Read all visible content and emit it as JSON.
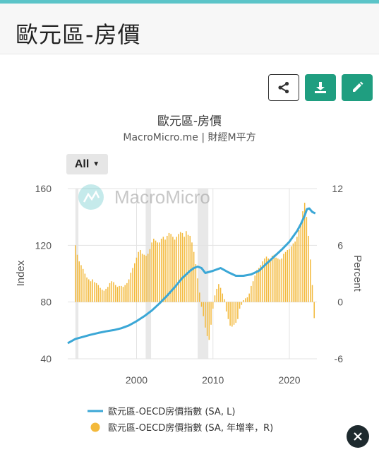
{
  "header": {
    "title": "歐元區-房價"
  },
  "toolbar": {
    "share_icon": "share-icon",
    "download_icon": "download-icon",
    "edit_icon": "pencil-icon"
  },
  "colors": {
    "accent": "#1f9e80",
    "line": "#3ba7d6",
    "bars": "#f3b93b",
    "recession": "#e8e8e8",
    "topbar": "#5bc4c8"
  },
  "range_selector": {
    "label": "All"
  },
  "watermark": "MacroMicro",
  "chart_data": {
    "type": "line+bar",
    "title": "歐元區-房價",
    "subtitle": "MacroMicro.me | 財經M平方",
    "xlim": [
      1991,
      2023.6
    ],
    "x_ticks": [
      2000,
      2010,
      2020
    ],
    "y_left": {
      "label": "Index",
      "ticks": [
        40,
        80,
        120,
        160
      ],
      "lim": [
        40,
        160
      ]
    },
    "y_right": {
      "label": "Percent",
      "ticks": [
        -6,
        0,
        6,
        12
      ],
      "lim": [
        -6,
        12
      ]
    },
    "recession_bands": [
      [
        1992.0,
        1992.4
      ],
      [
        2001.2,
        2001.9
      ],
      [
        2008.0,
        2009.4
      ]
    ],
    "series": [
      {
        "name": "歐元區-OECD房價指數 (SA, L)",
        "kind": "line",
        "axis": "left",
        "x": [
          1991.0,
          1992,
          1993,
          1994,
          1995,
          1996,
          1997,
          1998,
          1999,
          2000,
          2001,
          2002,
          2003,
          2004,
          2005,
          2006,
          2007,
          2007.5,
          2008,
          2008.5,
          2009,
          2010,
          2011,
          2012,
          2013,
          2014,
          2015,
          2016,
          2017,
          2018,
          2019,
          2020,
          2021,
          2021.5,
          2022,
          2022.3,
          2022.6,
          2023,
          2023.4
        ],
        "values": [
          51,
          54,
          55.5,
          57,
          58.2,
          59.3,
          60.2,
          61.5,
          63.5,
          66.5,
          70,
          74,
          79,
          84.5,
          90.5,
          97,
          102,
          104,
          105,
          104,
          100.5,
          102,
          104,
          101,
          98.5,
          98.5,
          99.5,
          102,
          107,
          112,
          117,
          122.5,
          130,
          135,
          141,
          145.5,
          146,
          143.5,
          142.5
        ]
      },
      {
        "name": "歐元區-OECD房價指數 (SA, 年增率，R)",
        "kind": "bar",
        "axis": "right",
        "x": [
          1992.0,
          1992.25,
          1992.5,
          1992.75,
          1993.0,
          1993.25,
          1993.5,
          1993.75,
          1994.0,
          1994.25,
          1994.5,
          1994.75,
          1995.0,
          1995.25,
          1995.5,
          1995.75,
          1996.0,
          1996.25,
          1996.5,
          1996.75,
          1997.0,
          1997.25,
          1997.5,
          1997.75,
          1998.0,
          1998.25,
          1998.5,
          1998.75,
          1999.0,
          1999.25,
          1999.5,
          1999.75,
          2000.0,
          2000.25,
          2000.5,
          2000.75,
          2001.0,
          2001.25,
          2001.5,
          2001.75,
          2002.0,
          2002.25,
          2002.5,
          2002.75,
          2003.0,
          2003.25,
          2003.5,
          2003.75,
          2004.0,
          2004.25,
          2004.5,
          2004.75,
          2005.0,
          2005.25,
          2005.5,
          2005.75,
          2006.0,
          2006.25,
          2006.5,
          2006.75,
          2007.0,
          2007.25,
          2007.5,
          2007.75,
          2008.0,
          2008.25,
          2008.5,
          2008.75,
          2009.0,
          2009.25,
          2009.5,
          2009.75,
          2010.0,
          2010.25,
          2010.5,
          2010.75,
          2011.0,
          2011.25,
          2011.5,
          2011.75,
          2012.0,
          2012.25,
          2012.5,
          2012.75,
          2013.0,
          2013.25,
          2013.5,
          2013.75,
          2014.0,
          2014.25,
          2014.5,
          2014.75,
          2015.0,
          2015.25,
          2015.5,
          2015.75,
          2016.0,
          2016.25,
          2016.5,
          2016.75,
          2017.0,
          2017.25,
          2017.5,
          2017.75,
          2018.0,
          2018.25,
          2018.5,
          2018.75,
          2019.0,
          2019.25,
          2019.5,
          2019.75,
          2020.0,
          2020.25,
          2020.5,
          2020.75,
          2021.0,
          2021.25,
          2021.5,
          2021.75,
          2022.0,
          2022.25,
          2022.5,
          2022.75,
          2023.0,
          2023.25
        ],
        "values": [
          6.0,
          5.0,
          4.3,
          3.9,
          3.5,
          3.0,
          2.6,
          2.4,
          2.2,
          2.4,
          2.1,
          2.0,
          1.8,
          1.5,
          1.3,
          1.2,
          1.4,
          1.6,
          2.0,
          2.2,
          2.1,
          1.8,
          1.6,
          1.7,
          1.7,
          1.6,
          1.8,
          2.0,
          2.4,
          3.1,
          3.6,
          4.1,
          4.7,
          5.3,
          5.5,
          5.1,
          5.0,
          4.9,
          5.1,
          5.6,
          6.3,
          6.7,
          6.5,
          6.3,
          6.3,
          6.7,
          6.9,
          6.6,
          7.0,
          7.3,
          7.2,
          6.9,
          6.6,
          6.9,
          7.2,
          7.4,
          7.3,
          6.9,
          7.5,
          7.1,
          7.0,
          6.3,
          5.3,
          4.0,
          2.5,
          1.0,
          -0.5,
          -1.5,
          -2.7,
          -3.6,
          -4.0,
          -2.4,
          -0.7,
          0.7,
          1.4,
          1.9,
          1.5,
          0.9,
          0.3,
          -1.0,
          -1.8,
          -2.5,
          -2.6,
          -2.4,
          -2.2,
          -1.8,
          -0.7,
          -0.3,
          0.2,
          0.4,
          0.5,
          0.9,
          1.7,
          2.2,
          2.8,
          3.4,
          3.6,
          3.9,
          4.3,
          4.6,
          4.8,
          4.6,
          4.5,
          4.9,
          5.0,
          4.7,
          4.6,
          4.5,
          4.6,
          5.1,
          5.3,
          5.5,
          5.6,
          5.9,
          6.2,
          6.4,
          6.9,
          7.6,
          8.3,
          9.6,
          10.5,
          9.0,
          7.0,
          4.5,
          1.8,
          -1.7
        ]
      }
    ],
    "legend": [
      {
        "label": "歐元區-OECD房價指數 (SA, L)",
        "marker": "line"
      },
      {
        "label": "歐元區-OECD房價指數 (SA, 年增率，R)",
        "marker": "dot"
      }
    ],
    "legend_position": "bottom",
    "grid": true
  }
}
